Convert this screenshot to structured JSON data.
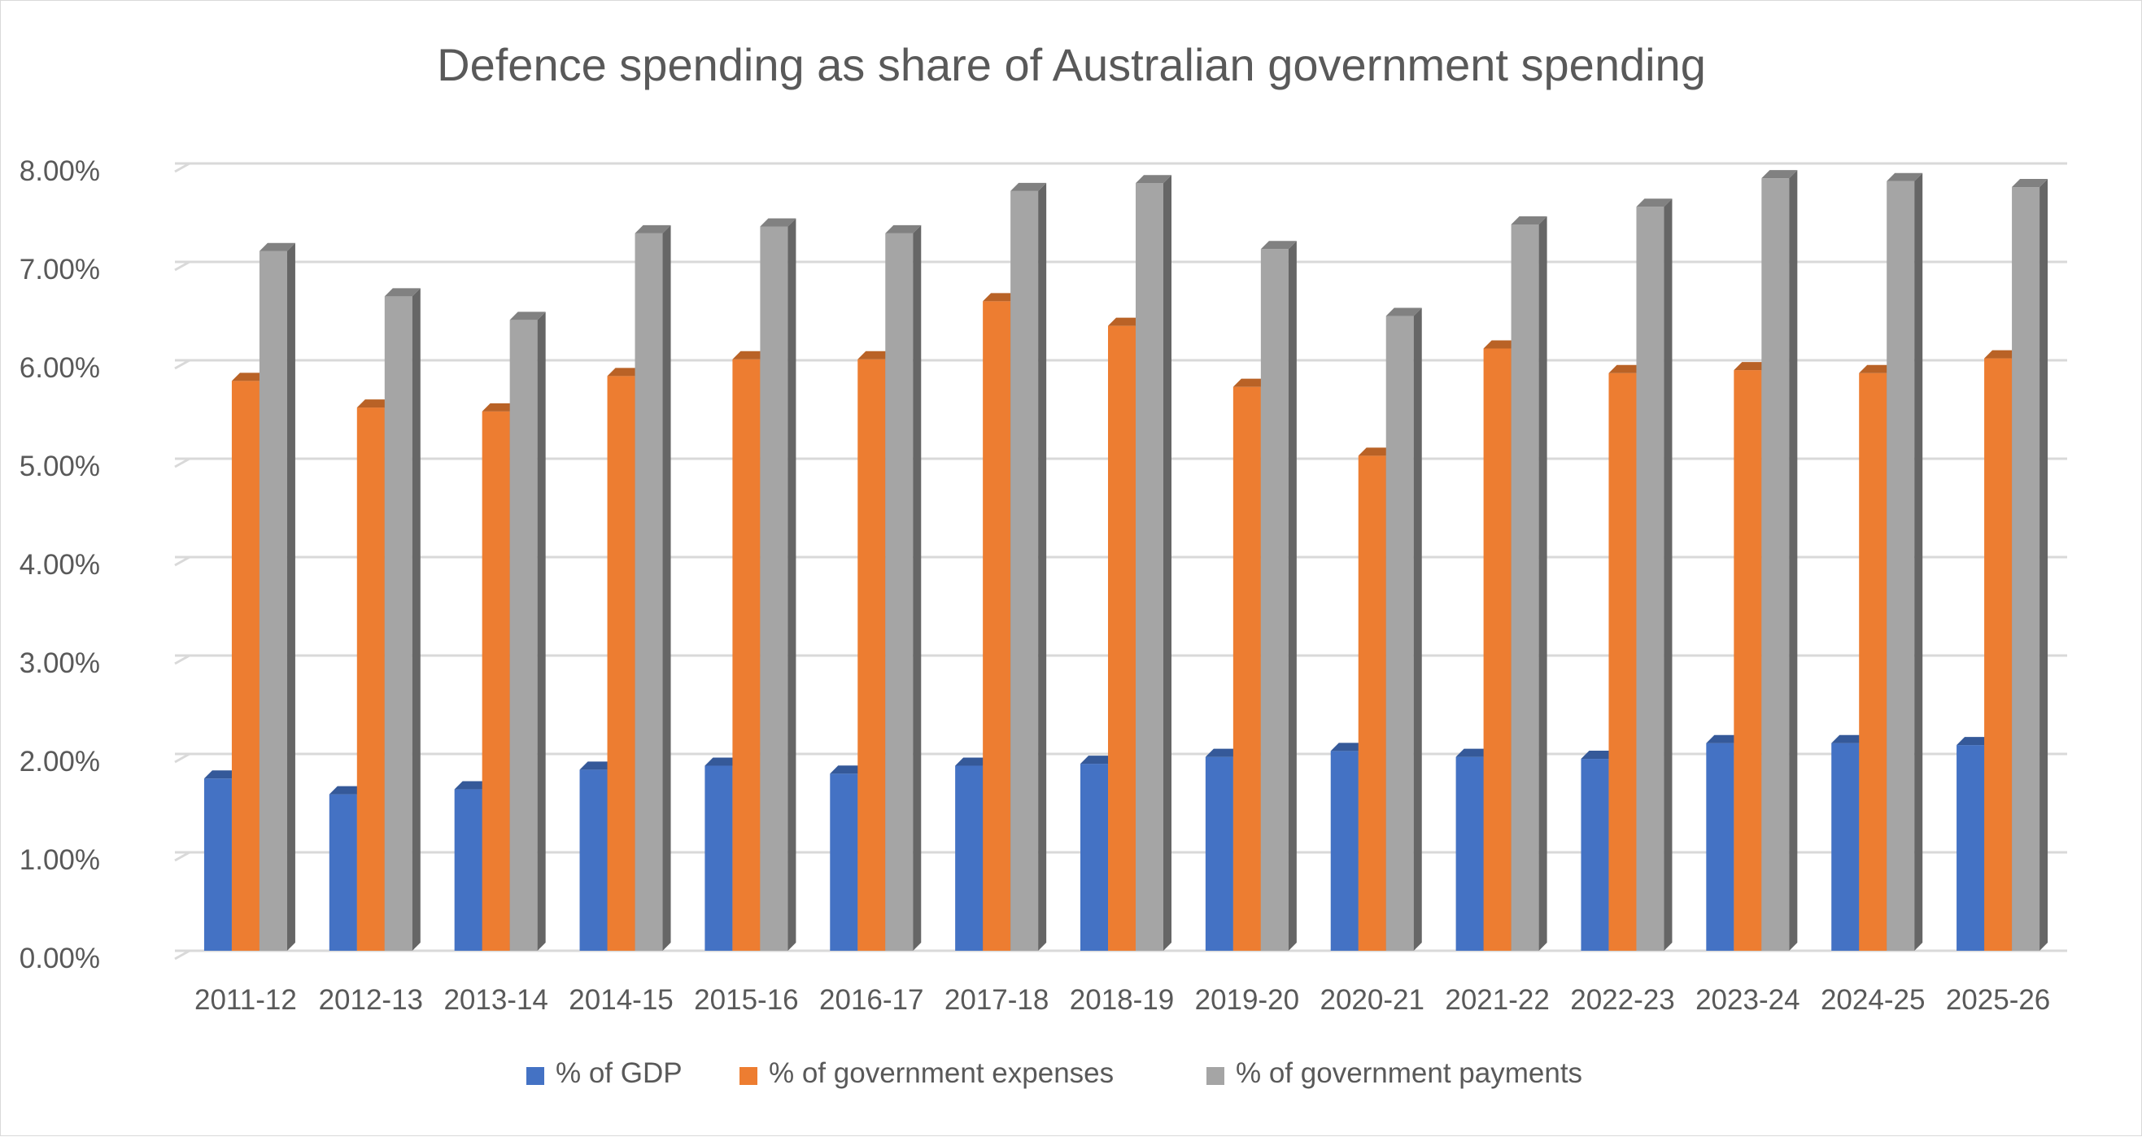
{
  "chart_data": {
    "type": "bar",
    "title": "Defence spending as share of Australian government spending",
    "xlabel": "",
    "ylabel": "",
    "ylim": [
      0,
      0.08
    ],
    "yticks": [
      "0.00%",
      "1.00%",
      "2.00%",
      "3.00%",
      "4.00%",
      "5.00%",
      "6.00%",
      "7.00%",
      "8.00%"
    ],
    "grid": true,
    "legend_position": "bottom",
    "style": "3d-clustered-column",
    "categories": [
      "2011-12",
      "2012-13",
      "2013-14",
      "2014-15",
      "2015-16",
      "2016-17",
      "2017-18",
      "2018-19",
      "2019-20",
      "2020-21",
      "2021-22",
      "2022-23",
      "2023-24",
      "2024-25",
      "2025-26"
    ],
    "series": [
      {
        "name": "% of GDP",
        "color": "#4472C4",
        "values": [
          0.0175,
          0.0159,
          0.0164,
          0.0184,
          0.0188,
          0.018,
          0.0188,
          0.019,
          0.0197,
          0.0203,
          0.0197,
          0.0195,
          0.0211,
          0.0211,
          0.0209
        ]
      },
      {
        "name": "% of government expenses",
        "color": "#ED7D31",
        "values": [
          0.0579,
          0.0552,
          0.0548,
          0.0584,
          0.0601,
          0.0601,
          0.066,
          0.0635,
          0.0573,
          0.0503,
          0.0612,
          0.0587,
          0.059,
          0.0587,
          0.0602
        ]
      },
      {
        "name": "% of government payments",
        "color": "#A5A5A5",
        "values": [
          0.0711,
          0.0665,
          0.0641,
          0.0729,
          0.0736,
          0.0729,
          0.0772,
          0.078,
          0.0713,
          0.0645,
          0.0738,
          0.0756,
          0.0785,
          0.0782,
          0.0776
        ]
      }
    ]
  }
}
